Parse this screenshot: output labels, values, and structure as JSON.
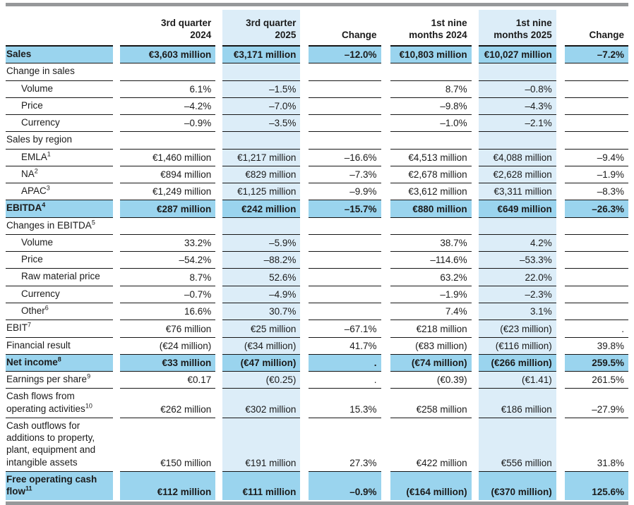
{
  "colors": {
    "row_highlight": "#9AD4EE",
    "column_highlight": "#DCEDF8",
    "rule_bar_gray": "#96989A",
    "border_black": "#161616"
  },
  "header": [
    "3rd quarter\n2024",
    "3rd quarter\n2025",
    "Change",
    "1st nine\nmonths 2024",
    "1st nine\nmonths 2025",
    "Change"
  ],
  "rows": [
    {
      "label": "Sales",
      "sup": "",
      "indent": false,
      "highlight": true,
      "values": [
        "€3,603 million",
        "€3,171 million",
        "–12.0%",
        "€10,803 million",
        "€10,027 million",
        "–7.2%"
      ]
    },
    {
      "label": "Change in sales",
      "sup": "",
      "indent": false,
      "highlight": false,
      "values": [
        "",
        "",
        "",
        "",
        "",
        ""
      ]
    },
    {
      "label": "Volume",
      "sup": "",
      "indent": true,
      "highlight": false,
      "values": [
        "6.1%",
        "–1.5%",
        "",
        "8.7%",
        "–0.8%",
        ""
      ]
    },
    {
      "label": "Price",
      "sup": "",
      "indent": true,
      "highlight": false,
      "values": [
        "–4.2%",
        "–7.0%",
        "",
        "–9.8%",
        "–4.3%",
        ""
      ]
    },
    {
      "label": "Currency",
      "sup": "",
      "indent": true,
      "highlight": false,
      "values": [
        "–0.9%",
        "–3.5%",
        "",
        "–1.0%",
        "–2.1%",
        ""
      ]
    },
    {
      "label": "Sales by region",
      "sup": "",
      "indent": false,
      "highlight": false,
      "values": [
        "",
        "",
        "",
        "",
        "",
        ""
      ]
    },
    {
      "label": "EMLA",
      "sup": "1",
      "indent": true,
      "highlight": false,
      "values": [
        "€1,460 million",
        "€1,217 million",
        "–16.6%",
        "€4,513 million",
        "€4,088 million",
        "–9.4%"
      ]
    },
    {
      "label": "NA",
      "sup": "2",
      "indent": true,
      "highlight": false,
      "values": [
        "€894 million",
        "€829 million",
        "–7.3%",
        "€2,678 million",
        "€2,628 million",
        "–1.9%"
      ]
    },
    {
      "label": "APAC",
      "sup": "3",
      "indent": true,
      "highlight": false,
      "values": [
        "€1,249 million",
        "€1,125 million",
        "–9.9%",
        "€3,612 million",
        "€3,311 million",
        "–8.3%"
      ]
    },
    {
      "label": "EBITDA",
      "sup": "4",
      "indent": false,
      "highlight": true,
      "values": [
        "€287 million",
        "€242 million",
        "–15.7%",
        "€880 million",
        "€649 million",
        "–26.3%"
      ]
    },
    {
      "label": "Changes in EBITDA",
      "sup": "5",
      "indent": false,
      "highlight": false,
      "values": [
        "",
        "",
        "",
        "",
        "",
        ""
      ]
    },
    {
      "label": "Volume",
      "sup": "",
      "indent": true,
      "highlight": false,
      "values": [
        "33.2%",
        "–5.9%",
        "",
        "38.7%",
        "4.2%",
        ""
      ]
    },
    {
      "label": "Price",
      "sup": "",
      "indent": true,
      "highlight": false,
      "values": [
        "–54.2%",
        "–88.2%",
        "",
        "–114.6%",
        "–53.3%",
        ""
      ]
    },
    {
      "label": "Raw material price",
      "sup": "",
      "indent": true,
      "highlight": false,
      "values": [
        "8.7%",
        "52.6%",
        "",
        "63.2%",
        "22.0%",
        ""
      ]
    },
    {
      "label": "Currency",
      "sup": "",
      "indent": true,
      "highlight": false,
      "values": [
        "–0.7%",
        "–4.9%",
        "",
        "–1.9%",
        "–2.3%",
        ""
      ]
    },
    {
      "label": "Other",
      "sup": "6",
      "indent": true,
      "highlight": false,
      "values": [
        "16.6%",
        "30.7%",
        "",
        "7.4%",
        "3.1%",
        ""
      ]
    },
    {
      "label": "EBIT",
      "sup": "7",
      "indent": false,
      "highlight": false,
      "values": [
        "€76 million",
        "€25 million",
        "–67.1%",
        "€218 million",
        "(€23 million)",
        "."
      ]
    },
    {
      "label": "Financial result",
      "sup": "",
      "indent": false,
      "highlight": false,
      "values": [
        "(€24 million)",
        "(€34 million)",
        "41.7%",
        "(€83 million)",
        "(€116 million)",
        "39.8%"
      ]
    },
    {
      "label": "Net income",
      "sup": "8",
      "indent": false,
      "highlight": true,
      "values": [
        "€33 million",
        "(€47 million)",
        ".",
        "(€74 million)",
        "(€266 million)",
        "259.5%"
      ]
    },
    {
      "label": "Earnings per share",
      "sup": "9",
      "indent": false,
      "highlight": false,
      "values": [
        "€0.17",
        "(€0.25)",
        ".",
        "(€0.39)",
        "(€1.41)",
        "261.5%"
      ]
    },
    {
      "label": "Cash flows from operating activities",
      "sup": "10",
      "indent": false,
      "highlight": false,
      "values": [
        "€262 million",
        "€302 million",
        "15.3%",
        "€258 million",
        "€186 million",
        "–27.9%"
      ]
    },
    {
      "label": "Cash outflows for additions to property, plant, equipment and intangible assets",
      "sup": "",
      "indent": false,
      "highlight": false,
      "values": [
        "€150 million",
        "€191 million",
        "27.3%",
        "€422 million",
        "€556 million",
        "31.8%"
      ]
    },
    {
      "label": "Free operating cash flow",
      "sup": "11",
      "indent": false,
      "highlight": true,
      "values": [
        "€112 million",
        "€111 million",
        "–0.9%",
        "(€164 million)",
        "(€370 million)",
        "125.6%"
      ]
    }
  ]
}
